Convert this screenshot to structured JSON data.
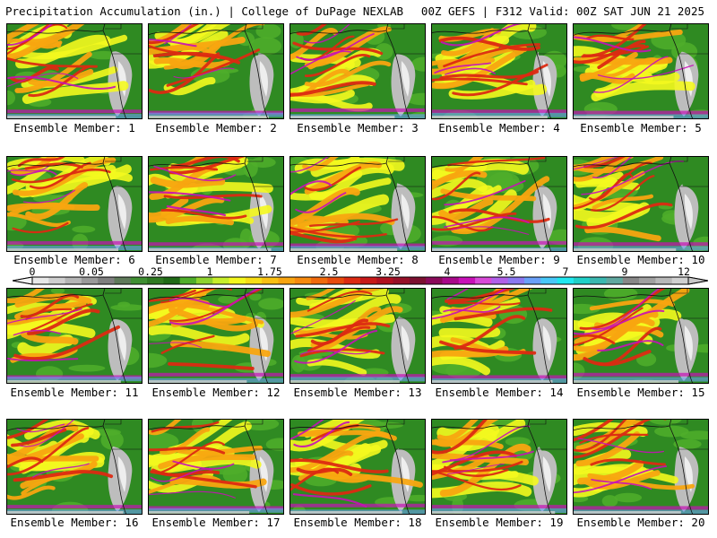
{
  "header": {
    "left": "Precipitation Accumulation (in.) | College of DuPage NEXLAB",
    "right": "00Z GEFS | F312 Valid: 00Z SAT JUN 21 2025"
  },
  "members": [
    {
      "label": "Ensemble Member: 1"
    },
    {
      "label": "Ensemble Member: 2"
    },
    {
      "label": "Ensemble Member: 3"
    },
    {
      "label": "Ensemble Member: 4"
    },
    {
      "label": "Ensemble Member: 5"
    },
    {
      "label": "Ensemble Member: 6"
    },
    {
      "label": "Ensemble Member: 7"
    },
    {
      "label": "Ensemble Member: 8"
    },
    {
      "label": "Ensemble Member: 9"
    },
    {
      "label": "Ensemble Member: 10"
    },
    {
      "label": "Ensemble Member: 11"
    },
    {
      "label": "Ensemble Member: 12"
    },
    {
      "label": "Ensemble Member: 13"
    },
    {
      "label": "Ensemble Member: 14"
    },
    {
      "label": "Ensemble Member: 15"
    },
    {
      "label": "Ensemble Member: 16"
    },
    {
      "label": "Ensemble Member: 17"
    },
    {
      "label": "Ensemble Member: 18"
    },
    {
      "label": "Ensemble Member: 19"
    },
    {
      "label": "Ensemble Member: 20"
    }
  ],
  "colorbar": {
    "labels": [
      "0",
      "0.05",
      "0.25",
      "1",
      "1.75",
      "2.5",
      "3.25",
      "4",
      "5.5",
      "7",
      "9",
      "12"
    ],
    "colors": [
      "#e8e8e8",
      "#cfcfcf",
      "#b5b5b5",
      "#9a9a9a",
      "#7f7f7f",
      "#5f7a5a",
      "#3f8f32",
      "#2f7a22",
      "#1f6a16",
      "#4fae2a",
      "#8fd22e",
      "#c8ee2a",
      "#f4f81e",
      "#f7dd16",
      "#f8c012",
      "#f8a510",
      "#f68a0e",
      "#f06a0c",
      "#e84a0c",
      "#dc2a12",
      "#c81818",
      "#b01020",
      "#961028",
      "#7c1030",
      "#8a0a5a",
      "#a8088a",
      "#c810b8",
      "#d84ad8",
      "#b060e8",
      "#8a78f0",
      "#6aa0f8",
      "#48c8f8",
      "#20e8f0",
      "#20d0c8",
      "#3ab8b0",
      "#60a8a0",
      "#888888",
      "#a0a0a0",
      "#b8b8b8",
      "#d0d0d0"
    ]
  }
}
